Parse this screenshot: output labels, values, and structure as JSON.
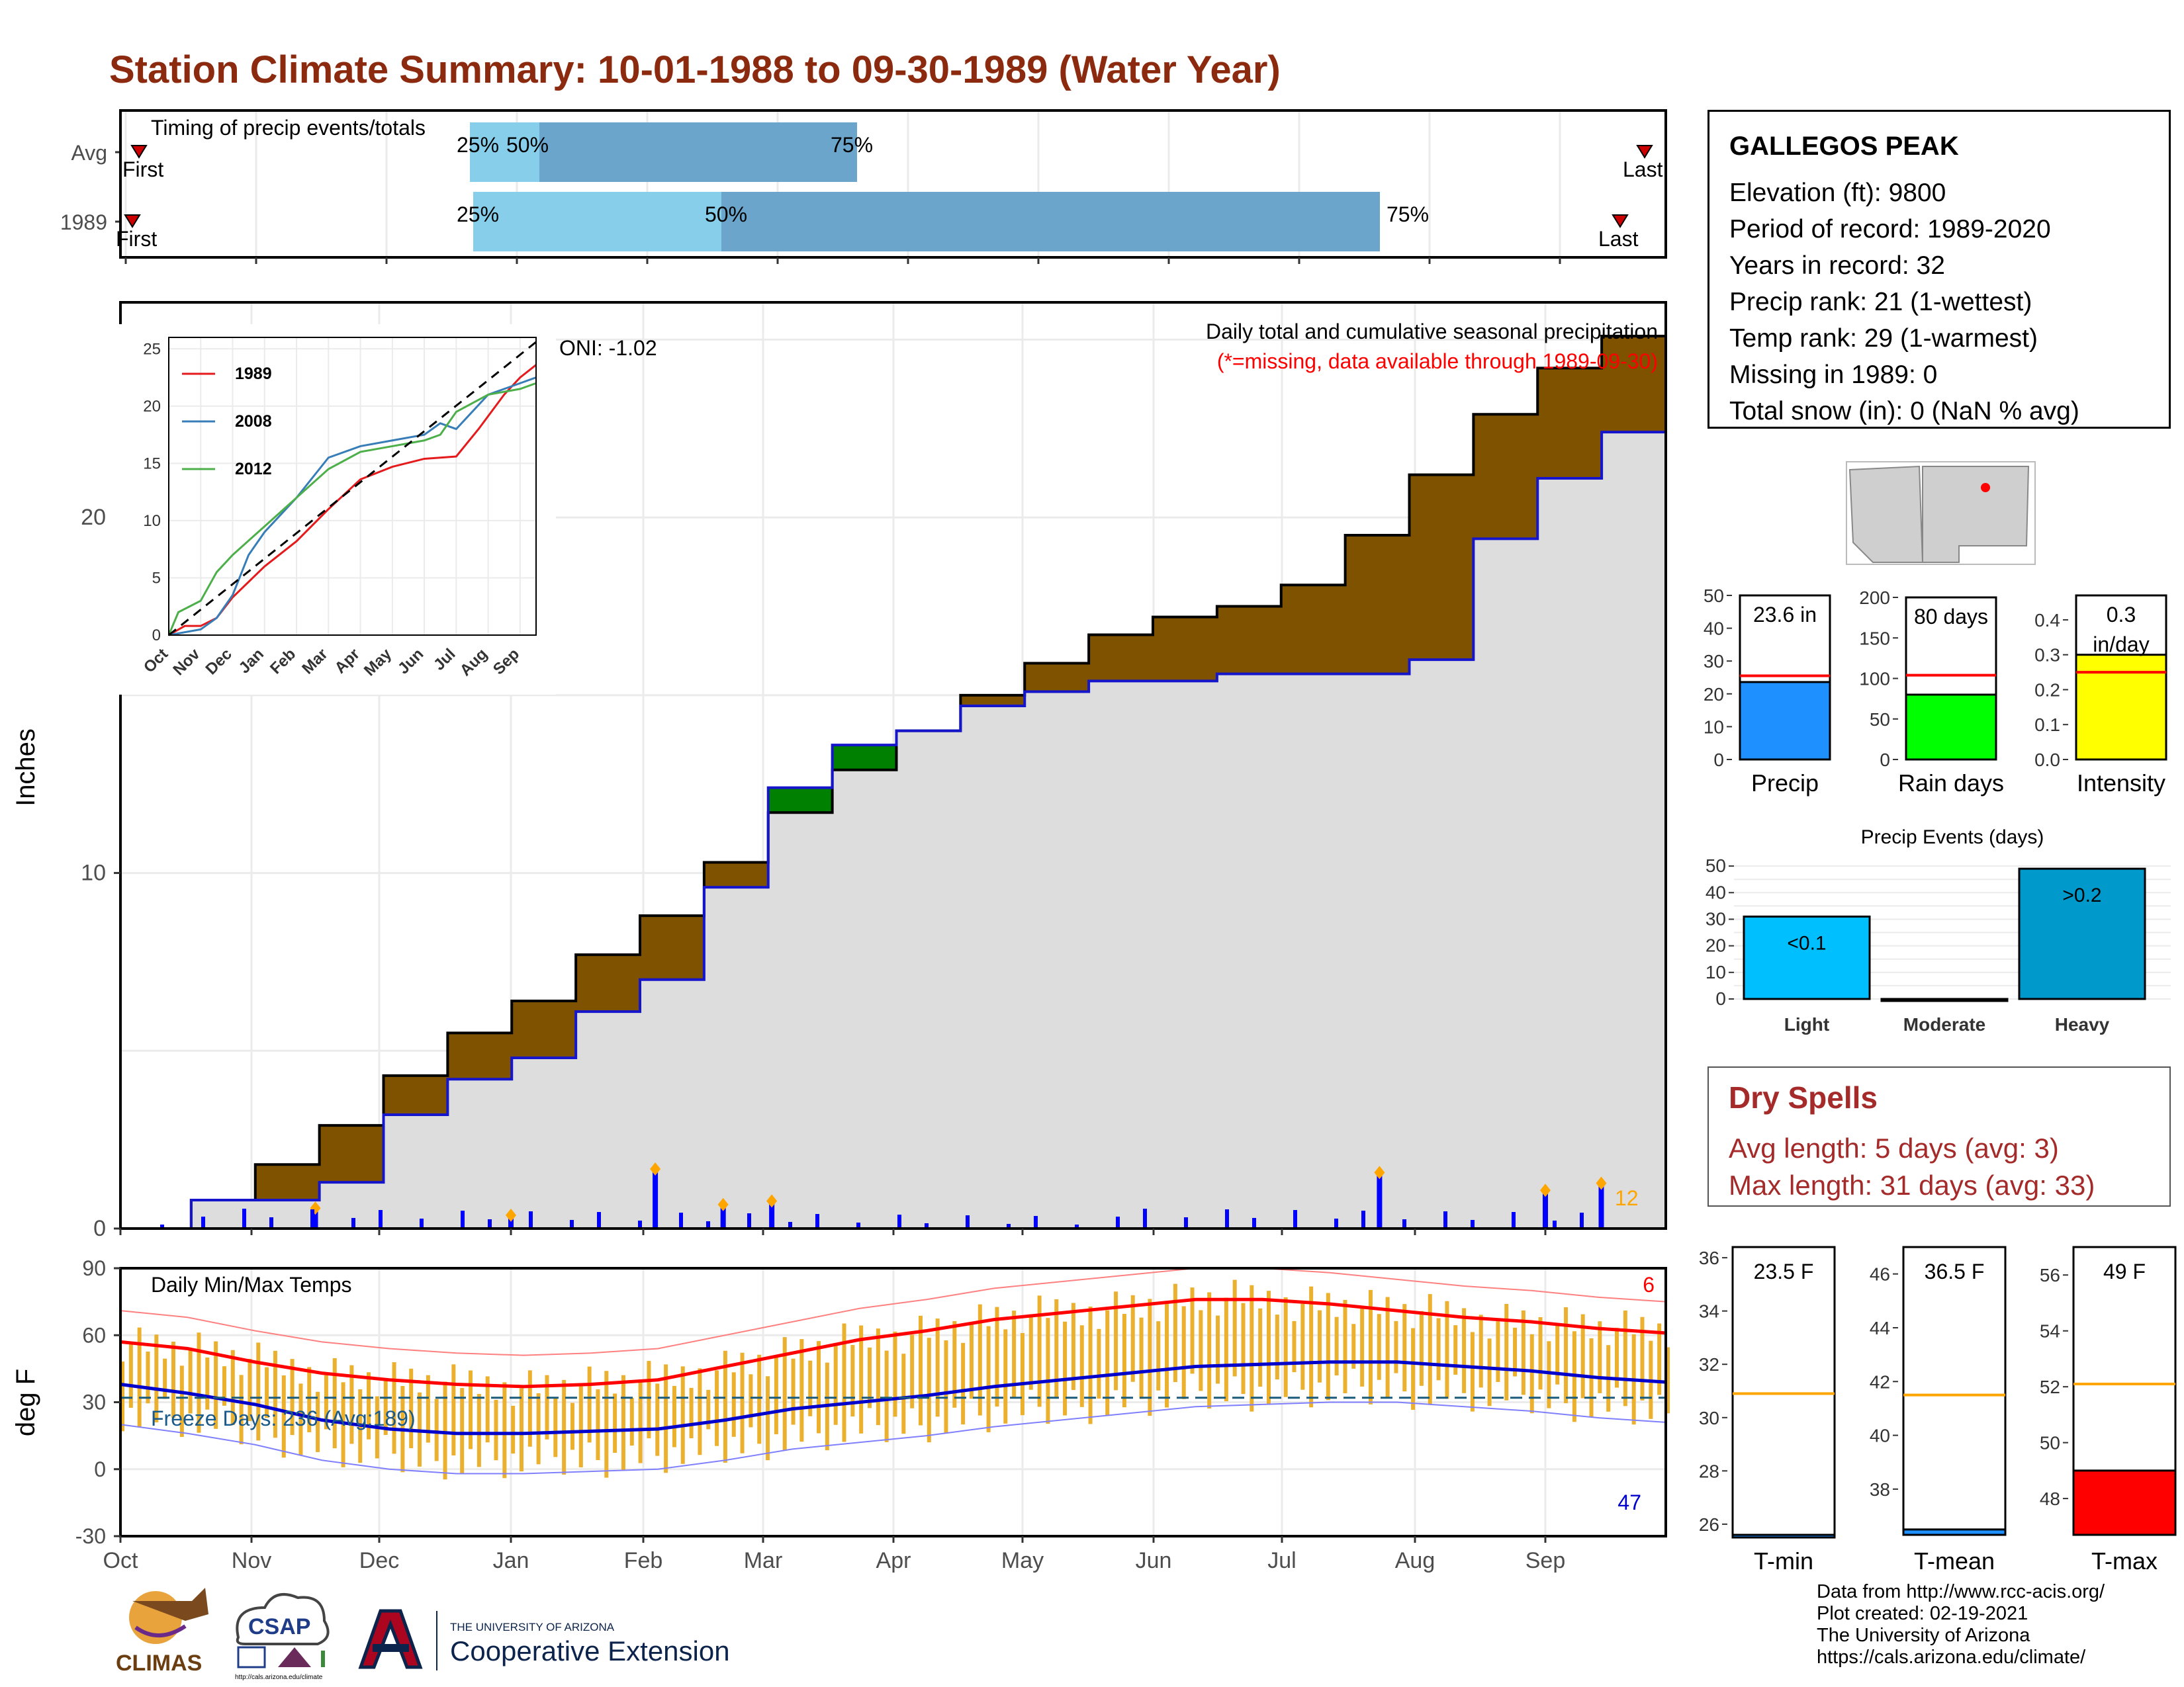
{
  "title": "Station Climate Summary: 10-01-1988 to 09-30-1989 (Water Year)",
  "station": {
    "name": "GALLEGOS PEAK",
    "lines": [
      "Elevation (ft): 9800",
      "Period of record: 1989-2020",
      "Years in record: 32",
      "Precip rank: 21 (1-wettest)",
      "Temp rank: 29 (1-warmest)",
      "Missing in 1989: 0",
      "Total snow (in): 0 (NaN % avg)"
    ]
  },
  "timing_panel": {
    "title": "Timing of precip events/totals",
    "rows": [
      {
        "label": "Avg",
        "first_label": "First",
        "last_label": "Last",
        "p25_label": "25%",
        "p50_label": "50%",
        "p75_label": "75%"
      },
      {
        "label": "1989",
        "first_label": "First",
        "last_label": "Last",
        "p25_label": "25%",
        "p50_label": "50%",
        "p75_label": "75%"
      }
    ]
  },
  "precip_panel": {
    "ylabel": "Inches",
    "note1": "Daily total and cumulative seasonal precipitation",
    "note2": "(*=missing, data available through 1989-09-30)",
    "oni": "ONI: -1.02",
    "count_label": "12",
    "yticks": [
      "0",
      "10",
      "20"
    ]
  },
  "inset": {
    "legend": [
      "1989",
      "2008",
      "2012"
    ],
    "yticks": [
      "0",
      "5",
      "10",
      "15",
      "20",
      "25"
    ],
    "xticks": [
      "Oct",
      "Nov",
      "Dec",
      "Jan",
      "Feb",
      "Mar",
      "Apr",
      "May",
      "Jun",
      "Jul",
      "Aug",
      "Sep"
    ]
  },
  "temp_panel": {
    "ylabel": "deg F",
    "title": "Daily Min/Max Temps",
    "freeze": "Freeze Days: 236 (Avg:189)",
    "hot_count": "6",
    "cold_count": "47",
    "yticks": [
      "-30",
      "0",
      "30",
      "60",
      "90"
    ]
  },
  "months": [
    "Oct",
    "Nov",
    "Dec",
    "Jan",
    "Feb",
    "Mar",
    "Apr",
    "May",
    "Jun",
    "Jul",
    "Aug",
    "Sep"
  ],
  "summary_bars": {
    "precip": {
      "label": "Precip",
      "value_label": "23.6 in",
      "yticks": [
        "0",
        "10",
        "20",
        "30",
        "40",
        "50"
      ]
    },
    "rain_days": {
      "label": "Rain days",
      "value_label": "80 days",
      "yticks": [
        "0",
        "50",
        "100",
        "150",
        "200"
      ]
    },
    "intensity": {
      "label": "Intensity",
      "value_label": "0.3\nin/day",
      "value_l1": "0.3",
      "value_l2": "in/day",
      "yticks": [
        "0.0",
        "0.1",
        "0.2",
        "0.3",
        "0.4"
      ]
    }
  },
  "events": {
    "title": "Precip Events (days)",
    "categories": [
      "Light",
      "Moderate",
      "Heavy"
    ],
    "bar_labels": [
      "<0.1",
      "",
      ">0.2"
    ],
    "yticks": [
      "0",
      "10",
      "20",
      "30",
      "40",
      "50"
    ]
  },
  "dry_spells": {
    "title": "Dry Spells",
    "avg": "Avg length: 5 days (avg: 3)",
    "max": "Max length: 31 days (avg: 33)"
  },
  "temp_bars": {
    "tmin": {
      "label": "T-min",
      "value_label": "23.5 F",
      "yticks": [
        "26",
        "28",
        "30",
        "32",
        "34",
        "36"
      ]
    },
    "tmean": {
      "label": "T-mean",
      "value_label": "36.5 F",
      "yticks": [
        "38",
        "40",
        "42",
        "44",
        "46"
      ]
    },
    "tmax": {
      "label": "T-max",
      "value_label": "49 F",
      "yticks": [
        "48",
        "50",
        "52",
        "54",
        "56"
      ]
    }
  },
  "credits": [
    "Data from http://www.rcc-acis.org/",
    "Plot created: 02-19-2021",
    "The University of Arizona",
    "https://cals.arizona.edu/climate/"
  ],
  "logos": {
    "climas": "CLIMAS",
    "csap": "CSAP",
    "csap_url": "http://cals.arizona.edu/climate",
    "ua_small": "THE UNIVERSITY OF ARIZONA",
    "ua_big": "Cooperative Extension"
  },
  "chart_data": [
    {
      "type": "line",
      "title": "Daily total and cumulative seasonal precipitation",
      "ylabel": "Inches",
      "ylim": [
        0,
        26
      ],
      "x_months": [
        "Oct",
        "Nov",
        "Dec",
        "Jan",
        "Feb",
        "Mar",
        "Apr",
        "May",
        "Jun",
        "Jul",
        "Aug",
        "Sep"
      ],
      "avg_cumulative": [
        0,
        0.8,
        1.8,
        2.9,
        4.3,
        5.5,
        6.4,
        7.7,
        8.8,
        10.3,
        11.7,
        12.9,
        14.0,
        15.0,
        15.9,
        16.7,
        17.2,
        17.5,
        18.1,
        19.5,
        21.2,
        22.9,
        24.2,
        25.1,
        25.7
      ],
      "obs_cumulative": [
        0,
        0.8,
        0.8,
        1.3,
        3.2,
        4.2,
        4.8,
        6.1,
        7.0,
        9.6,
        12.4,
        13.6,
        14.0,
        14.7,
        15.1,
        15.4,
        15.4,
        15.6,
        15.6,
        15.6,
        16.0,
        19.4,
        21.1,
        22.4,
        23.6
      ],
      "daily_precip_spikes": [
        {
          "month": "Nov",
          "day": 15,
          "value": 0.5
        },
        {
          "month": "Jan",
          "day": 0,
          "value": 0.3
        },
        {
          "month": "Feb",
          "day": 3,
          "value": 1.6
        },
        {
          "month": "Feb",
          "day": 20,
          "value": 0.6
        },
        {
          "month": "Mar",
          "day": 2,
          "value": 0.7
        },
        {
          "month": "Jul",
          "day": 22,
          "value": 1.5
        },
        {
          "month": "Sep",
          "day": 0,
          "value": 1.0
        },
        {
          "month": "Sep",
          "day": 13,
          "value": 1.2
        }
      ]
    },
    {
      "type": "line",
      "title": "Daily Min/Max Temps",
      "ylabel": "deg F",
      "ylim": [
        -30,
        90
      ],
      "freeze_line": 32,
      "avg_max": [
        57,
        54,
        48,
        43,
        40,
        38,
        37,
        38,
        40,
        46,
        52,
        58,
        62,
        67,
        70,
        73,
        76,
        76,
        74,
        71,
        68,
        66,
        63,
        61
      ],
      "avg_min": [
        38,
        34,
        29,
        22,
        18,
        16,
        16,
        17,
        18,
        22,
        27,
        30,
        33,
        37,
        40,
        43,
        46,
        47,
        48,
        48,
        46,
        44,
        41,
        39
      ]
    },
    {
      "type": "bar",
      "categories": [
        "Precip",
        "Rain days",
        "Intensity"
      ],
      "values": [
        23.6,
        80,
        0.3
      ],
      "averages": [
        25.5,
        104,
        0.25
      ]
    },
    {
      "type": "bar",
      "title": "Precip Events (days)",
      "categories": [
        "Light",
        "Moderate",
        "Heavy"
      ],
      "values": [
        31,
        0,
        49
      ]
    },
    {
      "type": "bar",
      "categories": [
        "T-min",
        "T-mean",
        "T-max"
      ],
      "values": [
        23.5,
        36.5,
        49
      ],
      "averages": [
        30.9,
        41.5,
        52.1
      ]
    }
  ]
}
